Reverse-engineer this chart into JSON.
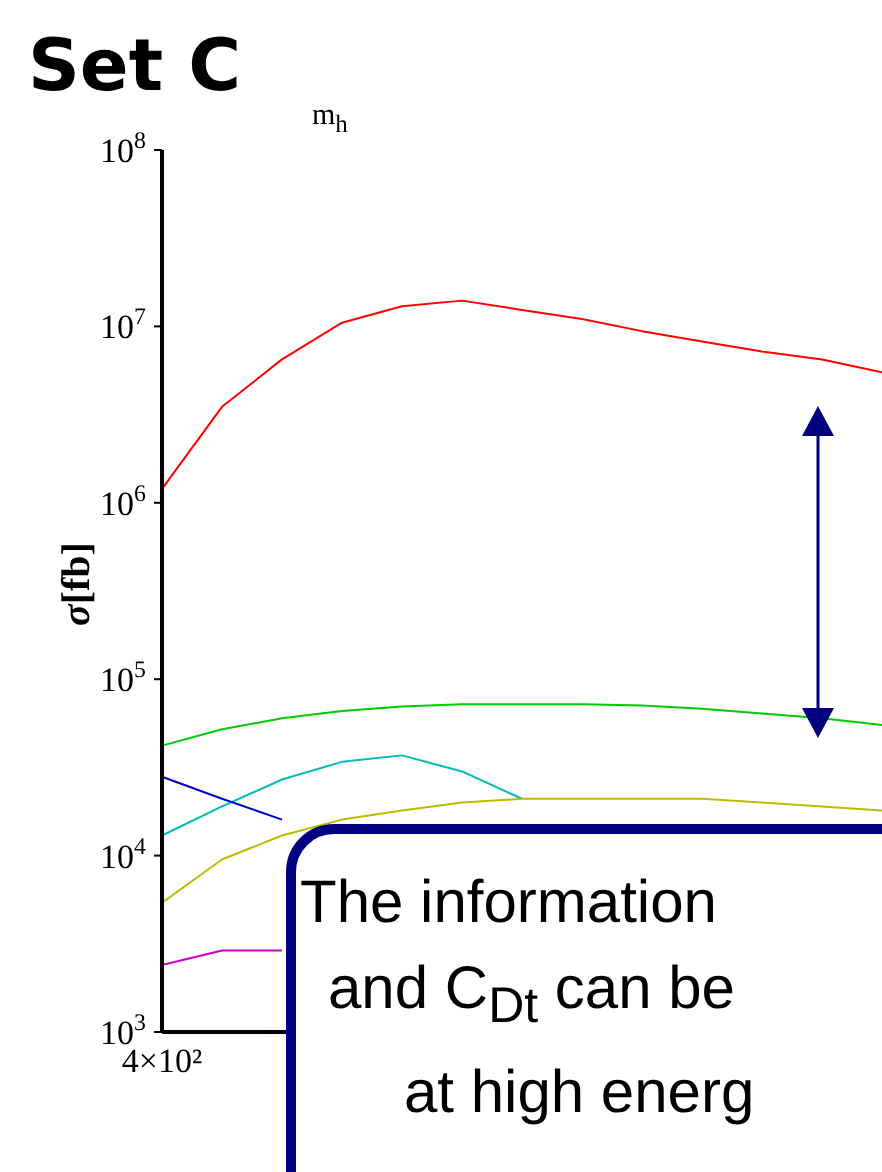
{
  "chart_data": {
    "type": "line",
    "title": "Set C",
    "ylabel": "σ[fb]",
    "log": true,
    "categories": [
      "4×10²",
      null,
      null,
      null,
      null,
      null,
      null,
      null,
      null,
      null,
      null,
      null,
      null
    ],
    "ylim": [
      1000,
      100000000
    ],
    "yticks": [
      {
        "value": 1000,
        "label": "10$^{3}$"
      },
      {
        "value": 10000,
        "label": "10$^{4}$"
      },
      {
        "value": 100000,
        "label": "10$^{5}$"
      },
      {
        "value": 1000000,
        "label": "10$^{6}$"
      },
      {
        "value": 10000000,
        "label": "10$^{7}$"
      },
      {
        "value": 100000000,
        "label": "10$^{8}$"
      }
    ],
    "series": [
      {
        "color": "#ff0000",
        "values": [
          1200000,
          3500000,
          6500000,
          10500000,
          13000000,
          14000000,
          12400000,
          11000000,
          9400000,
          8200000,
          7200000,
          6500000,
          5500000
        ]
      },
      {
        "color": "#00cc00",
        "values": [
          42000,
          52000,
          60000,
          66000,
          70000,
          72000,
          72000,
          72000,
          71000,
          68000,
          64000,
          60000,
          55000
        ]
      },
      {
        "color": "#00bbbb",
        "values": [
          13000,
          19000,
          27000,
          34000,
          37000,
          30000,
          21000,
          null,
          null,
          null,
          null,
          null,
          null
        ]
      },
      {
        "color": "#0000cc",
        "values": [
          28000,
          21000,
          16000,
          null,
          null,
          null,
          null,
          null,
          null,
          null,
          null,
          null,
          null
        ]
      },
      {
        "color": "#bbbb00",
        "values": [
          5400,
          9500,
          13000,
          16000,
          18000,
          20000,
          21000,
          21000,
          21000,
          21000,
          20000,
          19000,
          18000
        ]
      },
      {
        "color": "#cc00cc",
        "values": [
          2400,
          2900,
          2900,
          null,
          null,
          null,
          null,
          null,
          null,
          null,
          null,
          null,
          null
        ]
      }
    ],
    "annotations": [
      "m$_{h}$",
      "The information",
      "and C$_{Dt}$ can be",
      "at high energ"
    ]
  }
}
